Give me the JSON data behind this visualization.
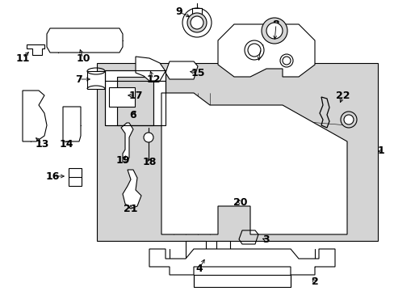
{
  "bg_color": "#ffffff",
  "line_color": "#000000",
  "shade_color": "#d4d4d4",
  "text_color": "#000000",
  "lw": 0.8,
  "fs": 9
}
